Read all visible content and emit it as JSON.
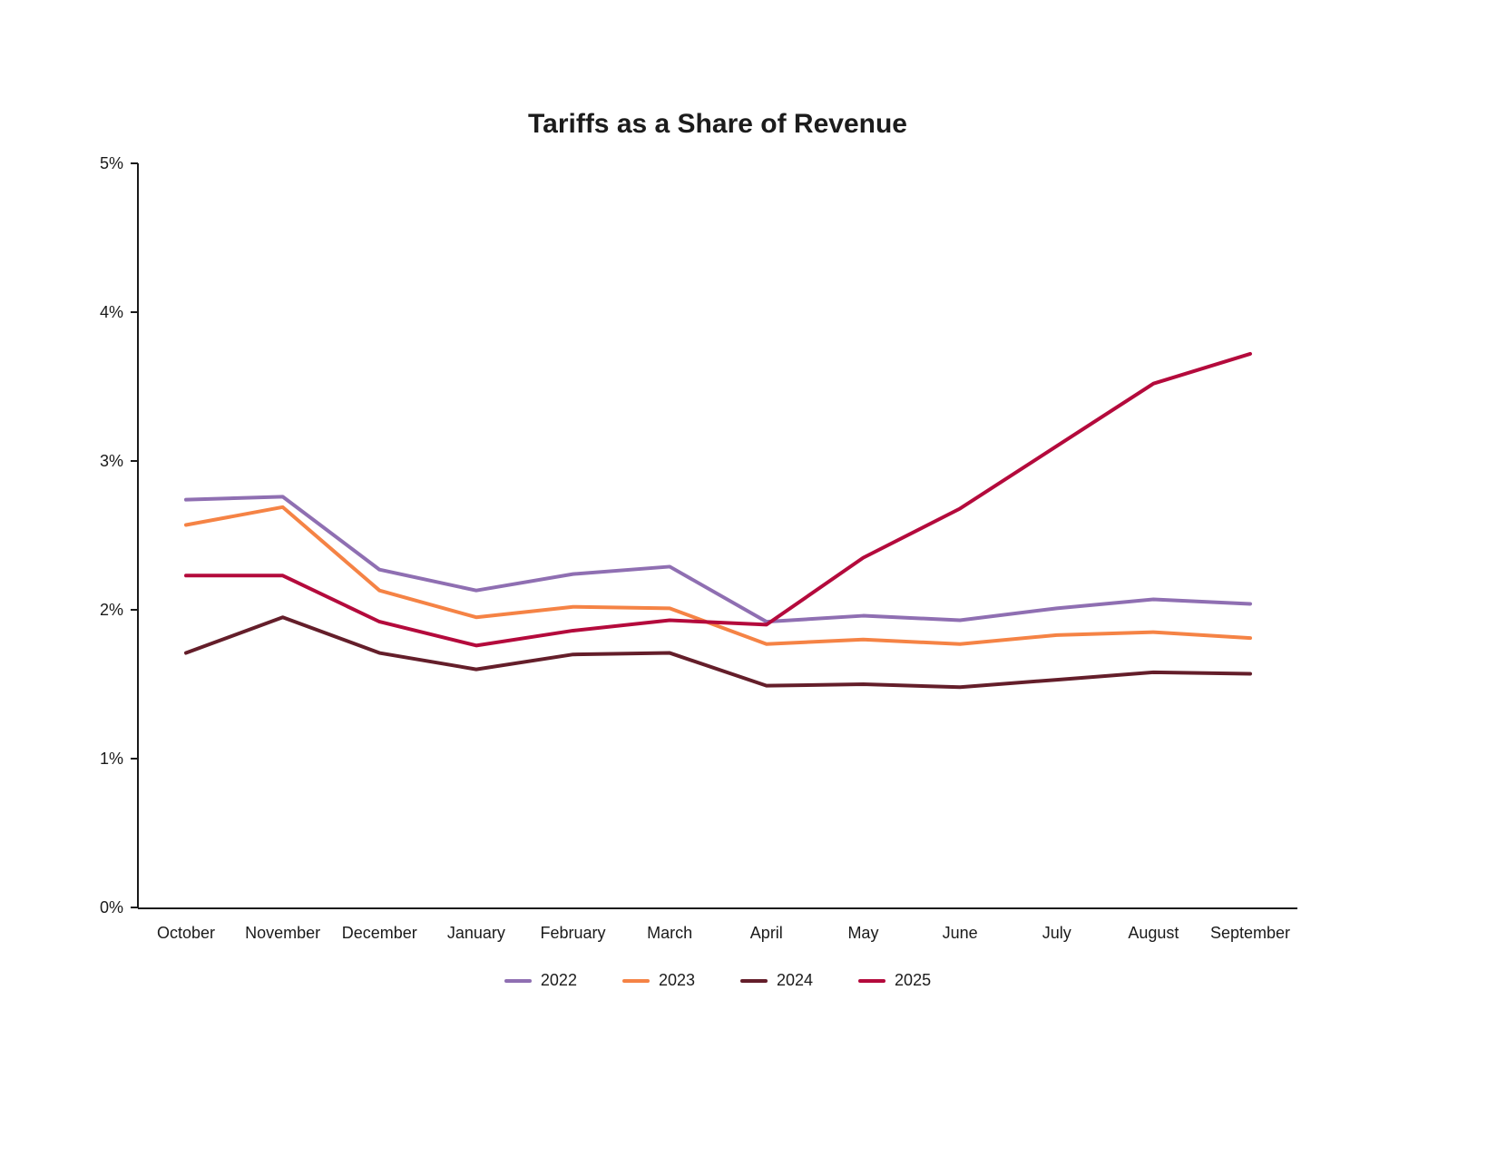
{
  "page": {
    "background": "#ffffff",
    "text_color": "#1c1c1c"
  },
  "chart_data": {
    "type": "line",
    "title": "Tariffs as a Share of Revenue",
    "xlabel": "",
    "ylabel": "",
    "ylim": [
      0,
      5
    ],
    "grid": false,
    "legend_position": "bottom",
    "categories": [
      "October",
      "November",
      "December",
      "January",
      "February",
      "March",
      "April",
      "May",
      "June",
      "July",
      "August",
      "September"
    ],
    "y_ticks": [
      {
        "value": 0,
        "label": "0%"
      },
      {
        "value": 1,
        "label": "1%"
      },
      {
        "value": 2,
        "label": "2%"
      },
      {
        "value": 3,
        "label": "3%"
      },
      {
        "value": 4,
        "label": "4%"
      },
      {
        "value": 5,
        "label": "5%"
      }
    ],
    "series": [
      {
        "name": "2022",
        "color": "#8F6FB2",
        "values": [
          2.74,
          2.76,
          2.27,
          2.13,
          2.24,
          2.29,
          1.92,
          1.96,
          1.93,
          2.01,
          2.07,
          2.04
        ]
      },
      {
        "name": "2023",
        "color": "#F58345",
        "values": [
          2.57,
          2.69,
          2.13,
          1.95,
          2.02,
          2.01,
          1.77,
          1.8,
          1.77,
          1.83,
          1.85,
          1.81
        ]
      },
      {
        "name": "2024",
        "color": "#641E2A",
        "values": [
          1.71,
          1.95,
          1.71,
          1.6,
          1.7,
          1.71,
          1.49,
          1.5,
          1.48,
          1.53,
          1.58,
          1.57
        ]
      },
      {
        "name": "2025",
        "color": "#B40A3C",
        "values": [
          2.23,
          2.23,
          1.92,
          1.76,
          1.86,
          1.93,
          1.9,
          2.35,
          2.68,
          3.1,
          3.52,
          3.72
        ]
      }
    ]
  }
}
